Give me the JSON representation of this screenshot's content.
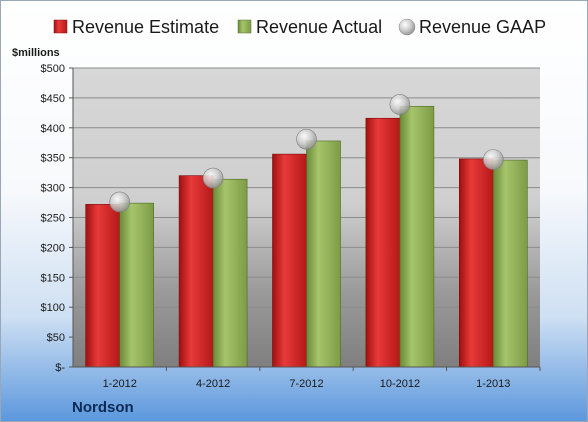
{
  "chart_data": {
    "type": "bar",
    "unit_label": "$millions",
    "company": "Nordson",
    "categories": [
      "1-2012",
      "4-2012",
      "7-2012",
      "10-2012",
      "1-2013"
    ],
    "series": [
      {
        "name": "Revenue Estimate",
        "kind": "bar",
        "color": "#d42a2a",
        "values": [
          272,
          320,
          356,
          416,
          348
        ]
      },
      {
        "name": "Revenue Actual",
        "kind": "bar",
        "color": "#8aac52",
        "values": [
          274,
          314,
          378,
          436,
          346
        ]
      },
      {
        "name": "Revenue GAAP",
        "kind": "marker",
        "color": "#c8c8c8",
        "values": [
          276,
          316,
          381,
          439,
          347
        ]
      }
    ],
    "ylim": [
      0,
      500
    ],
    "yticks": [
      0,
      50,
      100,
      150,
      200,
      250,
      300,
      350,
      400,
      450,
      500
    ],
    "ytick_labels": [
      "$-",
      "$50",
      "$100",
      "$150",
      "$200",
      "$250",
      "$300",
      "$350",
      "$400",
      "$450",
      "$500"
    ],
    "grid": true,
    "legend": "top"
  }
}
